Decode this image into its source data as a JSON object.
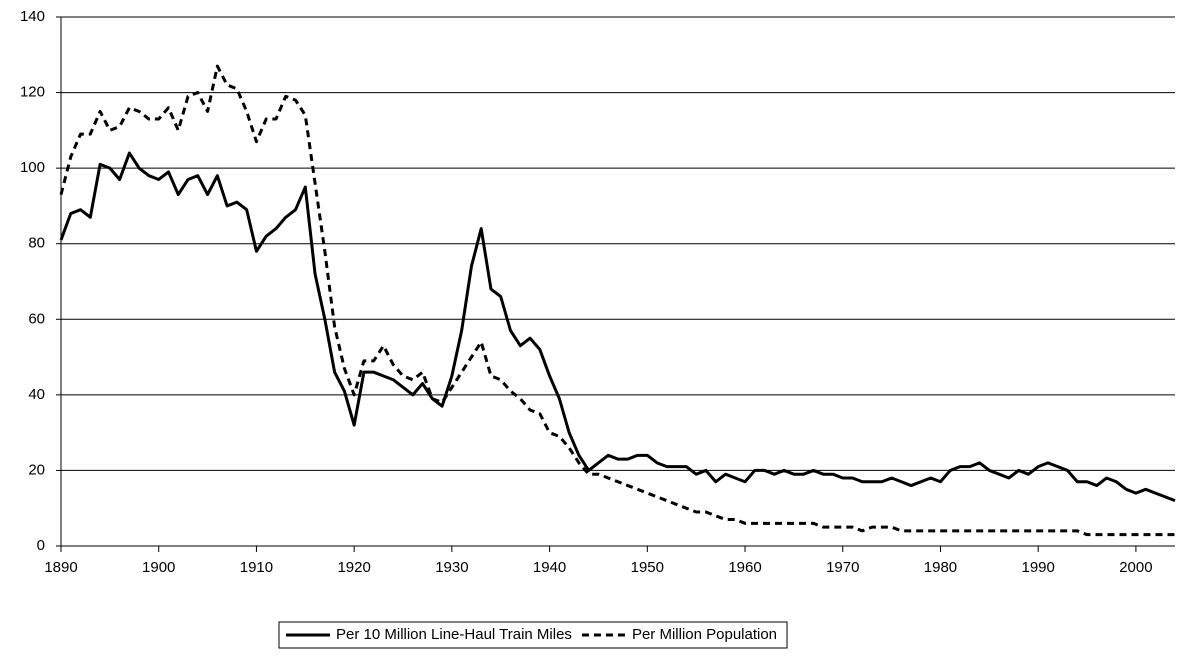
{
  "chart_data": {
    "type": "line",
    "x": [
      1890,
      1891,
      1892,
      1893,
      1894,
      1895,
      1896,
      1897,
      1898,
      1899,
      1900,
      1901,
      1902,
      1903,
      1904,
      1905,
      1906,
      1907,
      1908,
      1909,
      1910,
      1911,
      1912,
      1913,
      1914,
      1915,
      1916,
      1917,
      1918,
      1919,
      1920,
      1921,
      1922,
      1923,
      1924,
      1925,
      1926,
      1927,
      1928,
      1929,
      1930,
      1931,
      1932,
      1933,
      1934,
      1935,
      1936,
      1937,
      1938,
      1939,
      1940,
      1941,
      1942,
      1943,
      1944,
      1945,
      1946,
      1947,
      1948,
      1949,
      1950,
      1951,
      1952,
      1953,
      1954,
      1955,
      1956,
      1957,
      1958,
      1959,
      1960,
      1961,
      1962,
      1963,
      1964,
      1965,
      1966,
      1967,
      1968,
      1969,
      1970,
      1971,
      1972,
      1973,
      1974,
      1975,
      1976,
      1977,
      1978,
      1979,
      1980,
      1981,
      1982,
      1983,
      1984,
      1985,
      1986,
      1987,
      1988,
      1989,
      1990,
      1991,
      1992,
      1993,
      1994,
      1995,
      1996,
      1997,
      1998,
      1999,
      2000,
      2001,
      2002,
      2003,
      2004
    ],
    "series": [
      {
        "name": "Per 10 Million Line-Haul Train Miles",
        "color": "#000000",
        "dash": false,
        "values": [
          81,
          88,
          89,
          87,
          101,
          100,
          97,
          104,
          100,
          98,
          97,
          99,
          93,
          97,
          98,
          93,
          98,
          90,
          91,
          89,
          78,
          82,
          84,
          87,
          89,
          95,
          72,
          60,
          46,
          41,
          32,
          46,
          46,
          45,
          44,
          42,
          40,
          43,
          39,
          37,
          45,
          57,
          74,
          84,
          68,
          66,
          57,
          53,
          55,
          52,
          45,
          39,
          30,
          24,
          20,
          22,
          24,
          23,
          23,
          24,
          24,
          22,
          21,
          21,
          21,
          19,
          20,
          17,
          19,
          18,
          17,
          20,
          20,
          19,
          20,
          19,
          19,
          20,
          19,
          19,
          18,
          18,
          17,
          17,
          17,
          18,
          17,
          16,
          17,
          18,
          17,
          20,
          21,
          21,
          22,
          20,
          19,
          18,
          20,
          19,
          21,
          22,
          21,
          20,
          17,
          17,
          16,
          18,
          17,
          15,
          14,
          15,
          14,
          13,
          12
        ]
      },
      {
        "name": "Per Million Population",
        "color": "#000000",
        "dash": true,
        "values": [
          93,
          103,
          109,
          109,
          115,
          110,
          111,
          116,
          115,
          113,
          113,
          116,
          110,
          119,
          120,
          115,
          127,
          122,
          121,
          115,
          107,
          113,
          113,
          119,
          118,
          114,
          96,
          78,
          58,
          47,
          40,
          49,
          49,
          53,
          48,
          45,
          44,
          46,
          39,
          38,
          42,
          46,
          50,
          54,
          45,
          44,
          41,
          39,
          36,
          35,
          30,
          29,
          26,
          22,
          19,
          19,
          18,
          17,
          16,
          15,
          14,
          13,
          12,
          11,
          10,
          9,
          9,
          8,
          7,
          7,
          6,
          6,
          6,
          6,
          6,
          6,
          6,
          6,
          5,
          5,
          5,
          5,
          4,
          5,
          5,
          5,
          4,
          4,
          4,
          4,
          4,
          4,
          4,
          4,
          4,
          4,
          4,
          4,
          4,
          4,
          4,
          4,
          4,
          4,
          4,
          3,
          3,
          3,
          3,
          3,
          3,
          3,
          3,
          3,
          3
        ]
      }
    ],
    "xlim": [
      1890,
      2004
    ],
    "xticks": [
      1890,
      1900,
      1910,
      1920,
      1930,
      1940,
      1950,
      1960,
      1970,
      1980,
      1990,
      2000
    ],
    "ylim": [
      0,
      140
    ],
    "yticks": [
      0,
      20,
      40,
      60,
      80,
      100,
      120,
      140
    ],
    "grid": true,
    "legend": "bottom"
  }
}
